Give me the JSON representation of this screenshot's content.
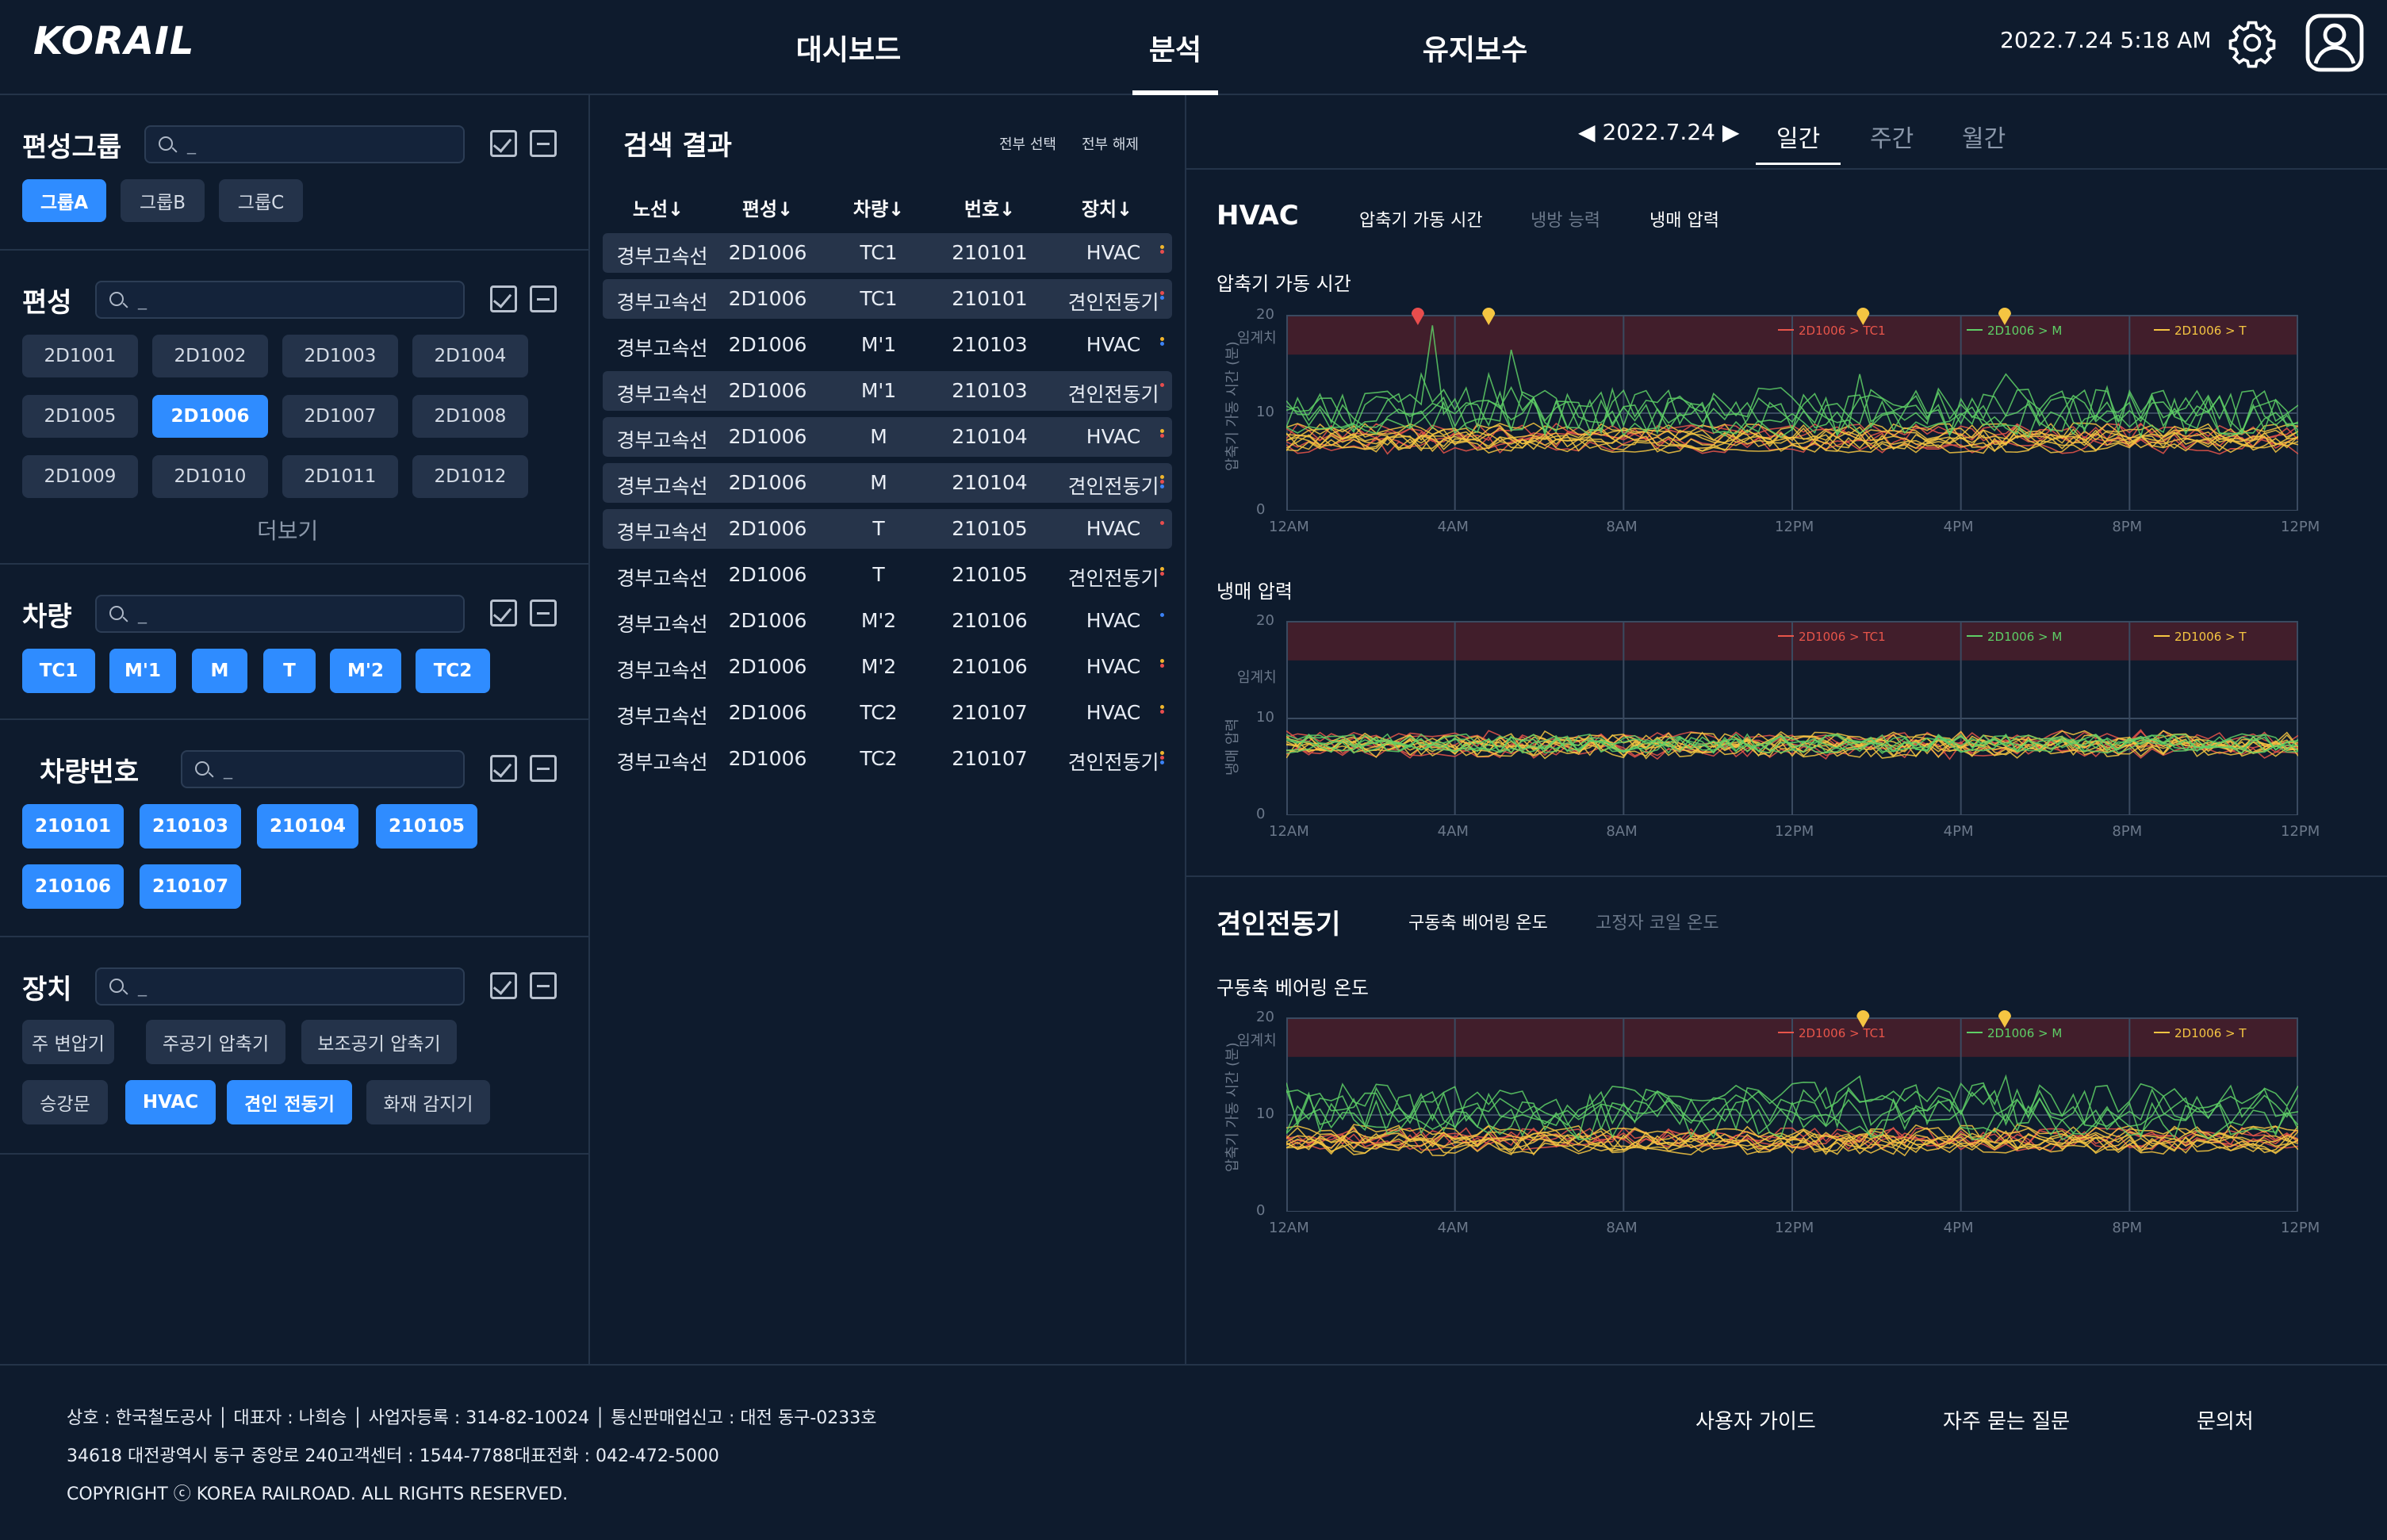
{
  "header": {
    "logo": "KORAIL",
    "nav": [
      {
        "label": "대시보드"
      },
      {
        "label": "분석"
      },
      {
        "label": "유지보수"
      }
    ],
    "datetime": "2022.7.24 5:18 AM"
  },
  "filters": {
    "group": {
      "title": "편성그룹",
      "search_placeholder": "_",
      "chips": [
        "그룹A",
        "그룹B",
        "그룹C"
      ],
      "selected": [
        "그룹A"
      ]
    },
    "formation": {
      "title": "편성",
      "search_placeholder": "_",
      "chips": [
        "2D1001",
        "2D1002",
        "2D1003",
        "2D1004",
        "2D1005",
        "2D1006",
        "2D1007",
        "2D1008",
        "2D1009",
        "2D1010",
        "2D1011",
        "2D1012"
      ],
      "selected": [
        "2D1006"
      ],
      "more": "더보기"
    },
    "car": {
      "title": "차량",
      "search_placeholder": "_",
      "chips": [
        "TC1",
        "M'1",
        "M",
        "T",
        "M'2",
        "TC2"
      ],
      "selected": [
        "TC1",
        "M'1",
        "M",
        "T",
        "M'2",
        "TC2"
      ]
    },
    "car_no": {
      "title": "차량번호",
      "search_placeholder": "_",
      "chips": [
        "210101",
        "210103",
        "210104",
        "210105",
        "210106",
        "210107"
      ],
      "selected": [
        "210101",
        "210103",
        "210104",
        "210105",
        "210106",
        "210107"
      ]
    },
    "device": {
      "title": "장치",
      "search_placeholder": "_",
      "chips": [
        "주 변압기",
        "주공기 압축기",
        "보조공기 압축기",
        "승강문",
        "HVAC",
        "견인 전동기",
        "화재 감지기"
      ],
      "selected": [
        "HVAC",
        "견인 전동기"
      ]
    }
  },
  "results": {
    "title": "검색 결과",
    "select_all": "전부 선택",
    "deselect_all": "전부 해제",
    "columns": [
      "노선↓",
      "편성↓",
      "차량↓",
      "번호↓",
      "장치↓"
    ],
    "rows": [
      {
        "line": "경부고속선",
        "formation": "2D1006",
        "car": "TC1",
        "number": "210101",
        "device": "HVAC",
        "dots": [
          "#f0b52c",
          "#e84d4d"
        ],
        "highlight": true
      },
      {
        "line": "경부고속선",
        "formation": "2D1006",
        "car": "TC1",
        "number": "210101",
        "device": "견인전동기",
        "dots": [
          "#e84d4d",
          "#3b82f6"
        ],
        "highlight": true
      },
      {
        "line": "경부고속선",
        "formation": "2D1006",
        "car": "M'1",
        "number": "210103",
        "device": "HVAC",
        "dots": [
          "#f0b52c",
          "#3b82f6"
        ],
        "highlight": false
      },
      {
        "line": "경부고속선",
        "formation": "2D1006",
        "car": "M'1",
        "number": "210103",
        "device": "견인전동기",
        "dots": [
          "#e84d4d"
        ],
        "highlight": true
      },
      {
        "line": "경부고속선",
        "formation": "2D1006",
        "car": "M",
        "number": "210104",
        "device": "HVAC",
        "dots": [
          "#f0b52c",
          "#e84d4d"
        ],
        "highlight": true
      },
      {
        "line": "경부고속선",
        "formation": "2D1006",
        "car": "M",
        "number": "210104",
        "device": "견인전동기",
        "dots": [
          "#f0b52c",
          "#e84d4d",
          "#3b82f6"
        ],
        "highlight": true
      },
      {
        "line": "경부고속선",
        "formation": "2D1006",
        "car": "T",
        "number": "210105",
        "device": "HVAC",
        "dots": [
          "#e84d4d"
        ],
        "highlight": true
      },
      {
        "line": "경부고속선",
        "formation": "2D1006",
        "car": "T",
        "number": "210105",
        "device": "견인전동기",
        "dots": [
          "#f0b52c",
          "#e84d4d"
        ],
        "highlight": false
      },
      {
        "line": "경부고속선",
        "formation": "2D1006",
        "car": "M'2",
        "number": "210106",
        "device": "HVAC",
        "dots": [
          "#3b82f6"
        ],
        "highlight": false
      },
      {
        "line": "경부고속선",
        "formation": "2D1006",
        "car": "M'2",
        "number": "210106",
        "device": "HVAC",
        "dots": [
          "#f0b52c",
          "#e84d4d"
        ],
        "highlight": false
      },
      {
        "line": "경부고속선",
        "formation": "2D1006",
        "car": "TC2",
        "number": "210107",
        "device": "HVAC",
        "dots": [
          "#f0b52c",
          "#e84d4d"
        ],
        "highlight": false
      },
      {
        "line": "경부고속선",
        "formation": "2D1006",
        "car": "TC2",
        "number": "210107",
        "device": "견인전동기",
        "dots": [
          "#f0b52c",
          "#e84d4d",
          "#3b82f6"
        ],
        "highlight": false
      }
    ]
  },
  "analysis": {
    "date": "2022.7.24",
    "tabs": [
      "일간",
      "주간",
      "월간"
    ],
    "hvac": {
      "title": "HVAC",
      "subtabs": [
        "압축기 가동 시간",
        "냉방 능력",
        "냉매 압력"
      ]
    },
    "motor": {
      "title": "견인전동기",
      "subtabs": [
        "구동축 베어링 온도",
        "고정자 코일 온도"
      ]
    }
  },
  "chart_data": [
    {
      "type": "line",
      "title": "압축기 가동 시간",
      "ylabel": "압축기 가동 시간 (분)",
      "threshold_label": "임계치",
      "ylim": [
        0,
        20
      ],
      "yticks": [
        0,
        10,
        20
      ],
      "xticks": [
        "12AM",
        "4AM",
        "8AM",
        "12PM",
        "4PM",
        "8PM",
        "12PM"
      ],
      "legend": [
        "2D1006 > TC1",
        "2D1006 > M",
        "2D1006 > T"
      ],
      "series_colors": [
        "#e8554a",
        "#5ecf66",
        "#f5c542"
      ],
      "alarms": [
        {
          "x": 0.13,
          "color": "#e84d4d"
        },
        {
          "x": 0.2,
          "color": "#f5c542"
        },
        {
          "x": 0.57,
          "color": "#f5c542"
        },
        {
          "x": 0.71,
          "color": "#f5c542"
        }
      ]
    },
    {
      "type": "line",
      "title": "냉매 압력",
      "ylabel": "냉매 압력",
      "threshold_label": "임계치",
      "ylim": [
        0,
        20
      ],
      "yticks": [
        0,
        10,
        20
      ],
      "xticks": [
        "12AM",
        "4AM",
        "8AM",
        "12PM",
        "4PM",
        "8PM",
        "12PM"
      ],
      "legend": [
        "2D1006 > TC1",
        "2D1006 > M",
        "2D1006 > T"
      ],
      "series_colors": [
        "#e8554a",
        "#5ecf66",
        "#f5c542"
      ],
      "alarms": []
    },
    {
      "type": "line",
      "title": "구동축 베어링 온도",
      "ylabel": "압축기 가동 시간 (분)",
      "threshold_label": "임계치",
      "ylim": [
        0,
        20
      ],
      "yticks": [
        0,
        10,
        20
      ],
      "xticks": [
        "12AM",
        "4AM",
        "8AM",
        "12PM",
        "4PM",
        "8PM",
        "12PM"
      ],
      "legend": [
        "2D1006 > TC1",
        "2D1006 > M",
        "2D1006 > T"
      ],
      "series_colors": [
        "#e8554a",
        "#5ecf66",
        "#f5c542"
      ],
      "alarms": [
        {
          "x": 0.57,
          "color": "#f5c542"
        },
        {
          "x": 0.71,
          "color": "#f5c542"
        }
      ]
    }
  ],
  "footer": {
    "line1": "상호 : 한국철도공사  │  대표자 : 나희승  │  사업자등록 : 314-82-10024  │  통신판매업신고 : 대전 동구-0233호",
    "line2": "34618 대전광역시 동구 중앙로 240고객센터 : 1544-7788대표전화 : 042-472-5000",
    "line3": "COPYRIGHT ⓒ KOREA RAILROAD. ALL RIGHTS RESERVED.",
    "links": [
      "사용자 가이드",
      "자주 묻는 질문",
      "문의처"
    ]
  }
}
